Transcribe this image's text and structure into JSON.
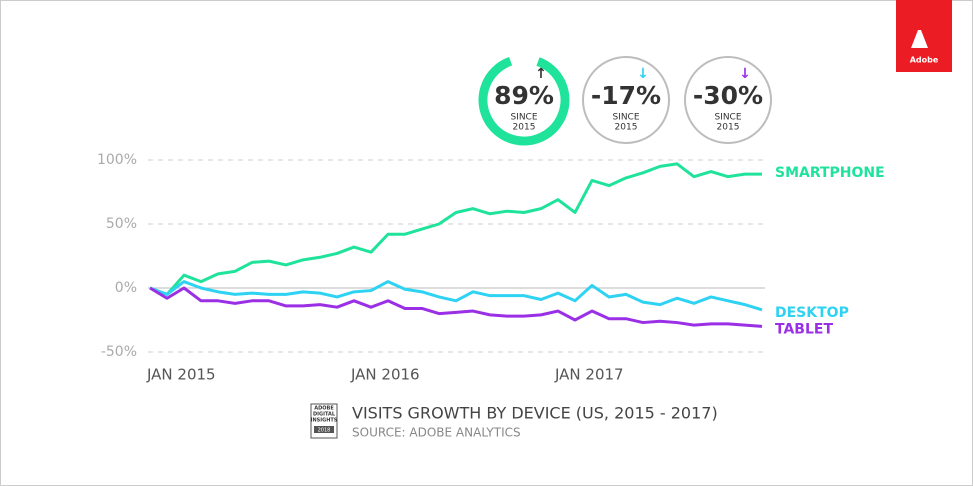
{
  "chart_data": {
    "type": "line",
    "title": "VISITS GROWTH BY DEVICE (US, 2015 - 2017)",
    "subtitle": "SOURCE: ADOBE ANALYTICS",
    "brand": "Adobe",
    "badge_lines": [
      "ADOBE",
      "DIGITAL",
      "INSIGHTS",
      "2018"
    ],
    "categories": [
      "JAN 2015",
      null,
      null,
      null,
      null,
      null,
      null,
      null,
      null,
      null,
      null,
      null,
      "JAN 2016",
      null,
      null,
      null,
      null,
      null,
      null,
      null,
      null,
      null,
      null,
      null,
      "JAN 2017",
      null,
      null,
      null,
      null,
      null,
      null,
      null,
      null,
      null,
      null,
      null,
      null
    ],
    "ylim": [
      -50,
      100
    ],
    "yticks": [
      {
        "value": -50,
        "label": "-50%"
      },
      {
        "value": 0,
        "label": "0%"
      },
      {
        "value": 50,
        "label": "50%"
      },
      {
        "value": 100,
        "label": "100%"
      }
    ],
    "grid": true,
    "series": [
      {
        "name": "SMARTPHONE",
        "color": "#1fe39b",
        "values": [
          0,
          -5,
          10,
          5,
          11,
          13,
          20,
          21,
          18,
          22,
          24,
          27,
          32,
          28,
          42,
          42,
          46,
          50,
          59,
          62,
          58,
          60,
          59,
          62,
          69,
          59,
          84,
          80,
          86,
          90,
          95,
          97,
          87,
          91,
          87,
          89,
          89
        ]
      },
      {
        "name": "DESKTOP",
        "color": "#2ed2f2",
        "values": [
          0,
          -5,
          5,
          0,
          -3,
          -5,
          -4,
          -5,
          -5,
          -3,
          -4,
          -7,
          -3,
          -2,
          5,
          -1,
          -3,
          -7,
          -10,
          -3,
          -6,
          -6,
          -6,
          -9,
          -4,
          -10,
          2,
          -7,
          -5,
          -11,
          -13,
          -8,
          -12,
          -7,
          -10,
          -13,
          -17
        ]
      },
      {
        "name": "TABLET",
        "color": "#9a2fe6",
        "values": [
          0,
          -8,
          0,
          -10,
          -10,
          -12,
          -10,
          -10,
          -14,
          -14,
          -13,
          -15,
          -10,
          -15,
          -10,
          -16,
          -16,
          -20,
          -19,
          -18,
          -21,
          -22,
          -22,
          -21,
          -18,
          -25,
          -18,
          -24,
          -24,
          -27,
          -26,
          -27,
          -29,
          -28,
          -28,
          -29,
          -30
        ]
      }
    ],
    "callouts": [
      {
        "value": "89%",
        "line1": "SINCE",
        "line2": "2015",
        "arrow": "↑",
        "color": "#333333",
        "ring": "#1fe39b"
      },
      {
        "value": "-17%",
        "line1": "SINCE",
        "line2": "2015",
        "arrow": "↓",
        "color": "#2ed2f2",
        "ring": "#bdbdbd"
      },
      {
        "value": "-30%",
        "line1": "SINCE",
        "line2": "2015",
        "arrow": "↓",
        "color": "#9a2fe6",
        "ring": "#bdbdbd"
      }
    ]
  }
}
